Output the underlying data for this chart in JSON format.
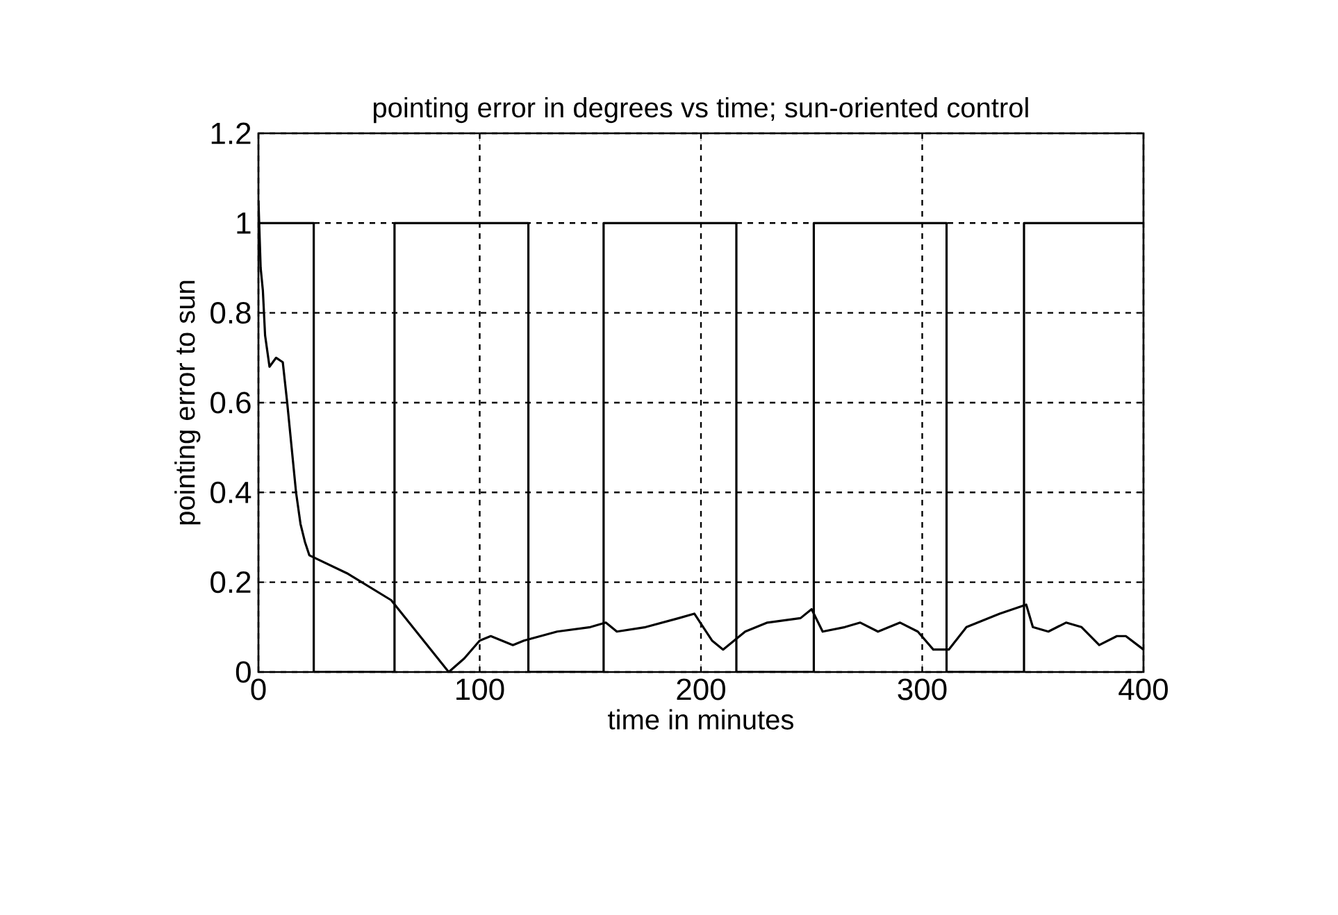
{
  "chart_data": {
    "type": "line",
    "title": "pointing error in degrees vs time; sun-oriented control",
    "xlabel": "time in minutes",
    "ylabel": "pointing error to sun",
    "xlim": [
      0,
      400
    ],
    "ylim": [
      0,
      1.2
    ],
    "xticks": [
      0,
      100,
      200,
      300,
      400
    ],
    "yticks": [
      0,
      0.2,
      0.4,
      0.6,
      0.8,
      1,
      1.2
    ],
    "grid": true,
    "series": [
      {
        "color": "#000000",
        "x": [
          0,
          1,
          2,
          3,
          5,
          8,
          11,
          13,
          15,
          17,
          19,
          21,
          23,
          40,
          60,
          73,
          86,
          93,
          100,
          105,
          115,
          120,
          135,
          150,
          157,
          162,
          175,
          190,
          197,
          205,
          210,
          220,
          230,
          245,
          250,
          255,
          265,
          272,
          280,
          290,
          298,
          305,
          312,
          320,
          335,
          347,
          350,
          357,
          365,
          372,
          380,
          388,
          392,
          400
        ],
        "values": [
          1.05,
          0.9,
          0.85,
          0.75,
          0.68,
          0.7,
          0.69,
          0.6,
          0.5,
          0.4,
          0.33,
          0.29,
          0.26,
          0.22,
          0.16,
          0.08,
          0.0,
          0.03,
          0.07,
          0.08,
          0.06,
          0.07,
          0.09,
          0.1,
          0.11,
          0.09,
          0.1,
          0.12,
          0.13,
          0.07,
          0.05,
          0.09,
          0.11,
          0.12,
          0.14,
          0.09,
          0.1,
          0.11,
          0.09,
          0.11,
          0.09,
          0.05,
          0.05,
          0.1,
          0.13,
          0.15,
          0.1,
          0.09,
          0.11,
          0.1,
          0.06,
          0.08,
          0.08,
          0.05
        ]
      },
      {
        "color": "#000000",
        "x": [
          0,
          25,
          25,
          61.5,
          61.5,
          122,
          122,
          156,
          156,
          216,
          216,
          251,
          251,
          311,
          311,
          346,
          346,
          400
        ],
        "values": [
          1,
          1,
          0,
          0,
          1,
          1,
          0,
          0,
          1,
          1,
          0,
          0,
          1,
          1,
          0,
          0,
          1,
          1
        ]
      }
    ]
  }
}
